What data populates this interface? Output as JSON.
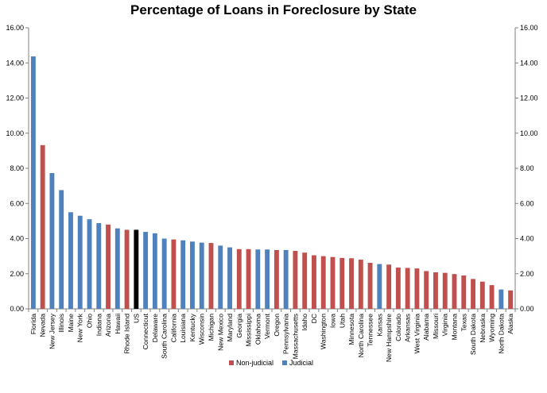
{
  "chart_data": {
    "type": "bar",
    "title": "Percentage of Loans in Foreclosure by State",
    "ylim": [
      0,
      16
    ],
    "y_ticks": [
      "0.00",
      "2.00",
      "4.00",
      "6.00",
      "8.00",
      "10.00",
      "12.00",
      "14.00",
      "16.00"
    ],
    "secondary_y_axis": true,
    "grid": false,
    "legend_position": "bottom-center",
    "colors": {
      "Non-judicial": "#c0504d",
      "Judicial": "#4f81bd",
      "US": "#000000"
    },
    "legend": [
      {
        "name": "Non-judicial",
        "color": "#c0504d"
      },
      {
        "name": "Judicial",
        "color": "#4f81bd"
      }
    ],
    "bars": [
      {
        "category": "Florida",
        "value": 14.37,
        "group": "Judicial"
      },
      {
        "category": "Nevada",
        "value": 9.32,
        "group": "Non-judicial"
      },
      {
        "category": "New Jersey",
        "value": 7.73,
        "group": "Judicial"
      },
      {
        "category": "Illinois",
        "value": 6.76,
        "group": "Judicial"
      },
      {
        "category": "Maine",
        "value": 5.5,
        "group": "Judicial"
      },
      {
        "category": "New York",
        "value": 5.3,
        "group": "Judicial"
      },
      {
        "category": "Ohio",
        "value": 5.1,
        "group": "Judicial"
      },
      {
        "category": "Indiana",
        "value": 4.88,
        "group": "Judicial"
      },
      {
        "category": "Arizona",
        "value": 4.8,
        "group": "Non-judicial"
      },
      {
        "category": "Hawaii",
        "value": 4.58,
        "group": "Judicial"
      },
      {
        "category": "Rhode Island",
        "value": 4.5,
        "group": "Non-judicial"
      },
      {
        "category": "US",
        "value": 4.5,
        "group": "US"
      },
      {
        "category": "Connecticut",
        "value": 4.38,
        "group": "Judicial"
      },
      {
        "category": "Delaware",
        "value": 4.3,
        "group": "Judicial"
      },
      {
        "category": "South Carolina",
        "value": 4.0,
        "group": "Judicial"
      },
      {
        "category": "California",
        "value": 3.95,
        "group": "Non-judicial"
      },
      {
        "category": "Louisiana",
        "value": 3.9,
        "group": "Judicial"
      },
      {
        "category": "Kentucky",
        "value": 3.83,
        "group": "Judicial"
      },
      {
        "category": "Wisconsin",
        "value": 3.77,
        "group": "Judicial"
      },
      {
        "category": "Michigan",
        "value": 3.75,
        "group": "Non-judicial"
      },
      {
        "category": "New Mexico",
        "value": 3.6,
        "group": "Judicial"
      },
      {
        "category": "Maryland",
        "value": 3.5,
        "group": "Judicial"
      },
      {
        "category": "Georgia",
        "value": 3.4,
        "group": "Non-judicial"
      },
      {
        "category": "Mississippi",
        "value": 3.4,
        "group": "Non-judicial"
      },
      {
        "category": "Oklahoma",
        "value": 3.38,
        "group": "Judicial"
      },
      {
        "category": "Vermont",
        "value": 3.38,
        "group": "Judicial"
      },
      {
        "category": "Oregon",
        "value": 3.35,
        "group": "Non-judicial"
      },
      {
        "category": "Pennsylvania",
        "value": 3.35,
        "group": "Judicial"
      },
      {
        "category": "Massachusetts",
        "value": 3.3,
        "group": "Non-judicial"
      },
      {
        "category": "Idaho",
        "value": 3.2,
        "group": "Non-judicial"
      },
      {
        "category": "DC",
        "value": 3.05,
        "group": "Non-judicial"
      },
      {
        "category": "Washington",
        "value": 3.0,
        "group": "Non-judicial"
      },
      {
        "category": "Iowa",
        "value": 2.95,
        "group": "Non-judicial"
      },
      {
        "category": "Utah",
        "value": 2.9,
        "group": "Non-judicial"
      },
      {
        "category": "Minnesota",
        "value": 2.88,
        "group": "Non-judicial"
      },
      {
        "category": "North Carolina",
        "value": 2.8,
        "group": "Non-judicial"
      },
      {
        "category": "Tennessee",
        "value": 2.62,
        "group": "Non-judicial"
      },
      {
        "category": "Kansas",
        "value": 2.55,
        "group": "Judicial"
      },
      {
        "category": "New Hampshire",
        "value": 2.52,
        "group": "Non-judicial"
      },
      {
        "category": "Colorado",
        "value": 2.35,
        "group": "Non-judicial"
      },
      {
        "category": "Arkansas",
        "value": 2.33,
        "group": "Non-judicial"
      },
      {
        "category": "West Virginia",
        "value": 2.3,
        "group": "Non-judicial"
      },
      {
        "category": "Alabama",
        "value": 2.15,
        "group": "Non-judicial"
      },
      {
        "category": "Missouri",
        "value": 2.08,
        "group": "Non-judicial"
      },
      {
        "category": "Virginia",
        "value": 2.05,
        "group": "Non-judicial"
      },
      {
        "category": "Montana",
        "value": 1.98,
        "group": "Non-judicial"
      },
      {
        "category": "Texas",
        "value": 1.9,
        "group": "Non-judicial"
      },
      {
        "category": "South Dakota",
        "value": 1.7,
        "group": "Non-judicial"
      },
      {
        "category": "Nebraska",
        "value": 1.55,
        "group": "Non-judicial"
      },
      {
        "category": "Wyoming",
        "value": 1.35,
        "group": "Non-judicial"
      },
      {
        "category": "North Dakota",
        "value": 1.1,
        "group": "Judicial"
      },
      {
        "category": "Alaska",
        "value": 1.05,
        "group": "Non-judicial"
      }
    ]
  }
}
